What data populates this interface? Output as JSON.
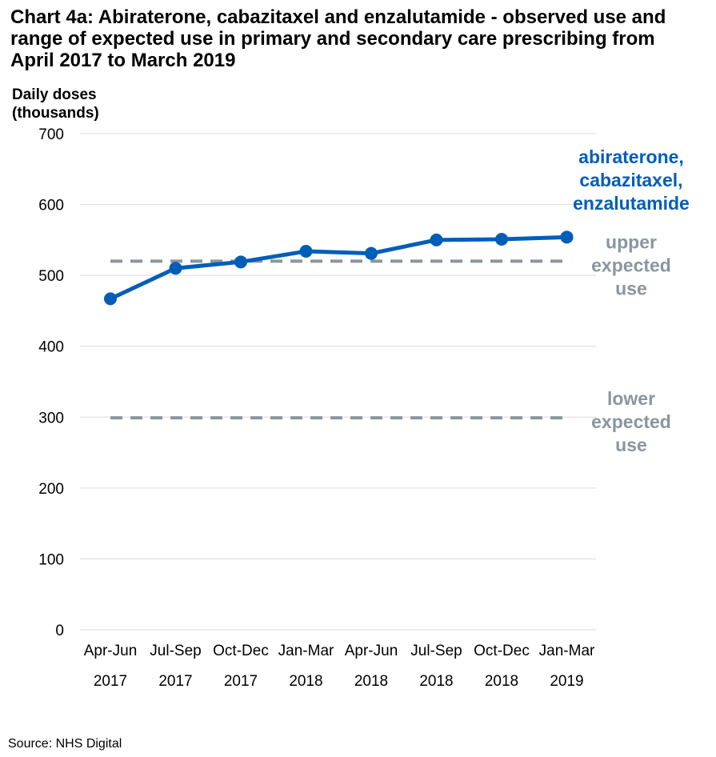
{
  "chart_data": {
    "type": "line",
    "title_lines": [
      "Chart 4a: Abiraterone, cabazitaxel and enzalutamide - observed use and",
      "range of expected use in primary and secondary care prescribing from",
      "April 2017 to March 2019"
    ],
    "ylabel_lines": [
      "Daily doses",
      "(thousands)"
    ],
    "ylim": [
      0,
      700
    ],
    "yticks": [
      0,
      100,
      200,
      300,
      400,
      500,
      600,
      700
    ],
    "grid": true,
    "categories": [
      [
        "Apr-Jun",
        "2017"
      ],
      [
        "Jul-Sep",
        "2017"
      ],
      [
        "Oct-Dec",
        "2017"
      ],
      [
        "Jan-Mar",
        "2018"
      ],
      [
        "Apr-Jun",
        "2018"
      ],
      [
        "Jul-Sep",
        "2018"
      ],
      [
        "Oct-Dec",
        "2018"
      ],
      [
        "Jan-Mar",
        "2019"
      ]
    ],
    "series": [
      {
        "name_lines": [
          "abiraterone,",
          "cabazitaxel,",
          "enzalutamide"
        ],
        "values": [
          467,
          510,
          519,
          534,
          531,
          550,
          551,
          554
        ],
        "color": "#005EB8"
      }
    ],
    "reference_lines": [
      {
        "label_lines": [
          "upper",
          "expected",
          "use"
        ],
        "value": 520,
        "color": "#8A959F"
      },
      {
        "label_lines": [
          "lower",
          "expected",
          "use"
        ],
        "value": 299,
        "color": "#8A959F"
      }
    ],
    "source": "Source: NHS Digital"
  }
}
